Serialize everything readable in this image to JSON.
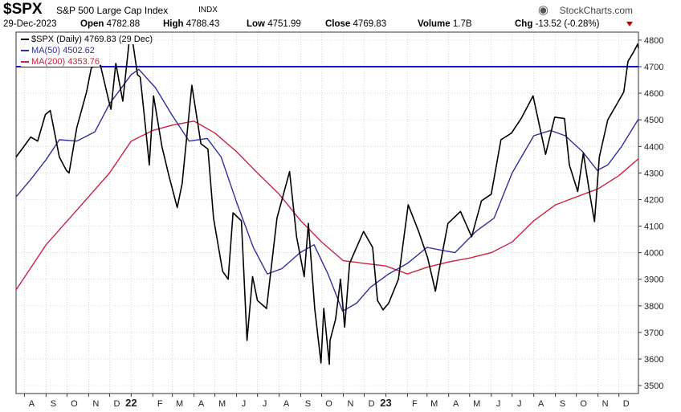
{
  "header": {
    "symbol": "$SPX",
    "name": "S&P 500 Large Cap Index",
    "exchange": "INDX",
    "brand": "StockCharts.com",
    "date": "29-Dec-2023",
    "open_label": "Open",
    "open": "4782.88",
    "high_label": "High",
    "high": "4788.43",
    "low_label": "Low",
    "low": "4751.99",
    "close_label": "Close",
    "close": "4769.83",
    "volume_label": "Volume",
    "volume": "1.7B",
    "chg_label": "Chg",
    "chg": "-13.52 (-0.28%)"
  },
  "legend": {
    "main": "$SPX (Daily) 4769.83 (29 Dec)",
    "ma50": "MA(50) 4502.62",
    "ma200": "MA(200) 4353.76"
  },
  "colors": {
    "price": "#000000",
    "ma50": "#2f2f9e",
    "ma200": "#cc2040",
    "hline": "#1010cc",
    "grid": "#c8c8c8",
    "axis": "#333333",
    "down_arrow": "#cc0000"
  },
  "chart_data": {
    "type": "line",
    "title": "$SPX (Daily) 4769.83 (29 Dec)",
    "x_tick_labels": [
      "A",
      "S",
      "O",
      "N",
      "D",
      "22",
      "F",
      "M",
      "A",
      "M",
      "J",
      "J",
      "A",
      "S",
      "O",
      "N",
      "D",
      "23",
      "F",
      "M",
      "A",
      "M",
      "J",
      "J",
      "A",
      "S",
      "O",
      "N",
      "D"
    ],
    "y_ticks": [
      3500,
      3600,
      3700,
      3800,
      3900,
      4000,
      4100,
      4200,
      4300,
      4400,
      4500,
      4600,
      4700,
      4800
    ],
    "ylim": [
      3470,
      4830
    ],
    "grid": true,
    "horizontal_line": 4700,
    "x_range": [
      "2021-07-20",
      "2023-12-29"
    ],
    "series": [
      {
        "name": "$SPX",
        "points": [
          [
            "2021-07-20",
            4360
          ],
          [
            "2021-07-30",
            4395
          ],
          [
            "2021-08-10",
            4435
          ],
          [
            "2021-08-20",
            4420
          ],
          [
            "2021-08-31",
            4520
          ],
          [
            "2021-09-07",
            4535
          ],
          [
            "2021-09-20",
            4360
          ],
          [
            "2021-09-30",
            4310
          ],
          [
            "2021-10-04",
            4300
          ],
          [
            "2021-10-15",
            4470
          ],
          [
            "2021-10-29",
            4605
          ],
          [
            "2021-11-05",
            4697
          ],
          [
            "2021-11-18",
            4705
          ],
          [
            "2021-11-30",
            4570
          ],
          [
            "2021-12-03",
            4540
          ],
          [
            "2021-12-10",
            4712
          ],
          [
            "2021-12-20",
            4570
          ],
          [
            "2021-12-29",
            4793
          ],
          [
            "2022-01-03",
            4797
          ],
          [
            "2022-01-10",
            4670
          ],
          [
            "2022-01-14",
            4660
          ],
          [
            "2022-01-24",
            4410
          ],
          [
            "2022-01-27",
            4330
          ],
          [
            "2022-02-02",
            4590
          ],
          [
            "2022-02-14",
            4400
          ],
          [
            "2022-02-24",
            4290
          ],
          [
            "2022-03-08",
            4170
          ],
          [
            "2022-03-15",
            4260
          ],
          [
            "2022-03-29",
            4630
          ],
          [
            "2022-04-11",
            4410
          ],
          [
            "2022-04-21",
            4390
          ],
          [
            "2022-04-29",
            4130
          ],
          [
            "2022-05-12",
            3930
          ],
          [
            "2022-05-20",
            3900
          ],
          [
            "2022-05-27",
            4150
          ],
          [
            "2022-06-08",
            4120
          ],
          [
            "2022-06-16",
            3670
          ],
          [
            "2022-06-24",
            3910
          ],
          [
            "2022-07-01",
            3820
          ],
          [
            "2022-07-14",
            3790
          ],
          [
            "2022-07-29",
            4130
          ],
          [
            "2022-08-16",
            4305
          ],
          [
            "2022-08-26",
            4060
          ],
          [
            "2022-09-06",
            3910
          ],
          [
            "2022-09-12",
            4110
          ],
          [
            "2022-09-21",
            3790
          ],
          [
            "2022-09-30",
            3585
          ],
          [
            "2022-10-04",
            3790
          ],
          [
            "2022-10-12",
            3580
          ],
          [
            "2022-10-13",
            3670
          ],
          [
            "2022-10-21",
            3750
          ],
          [
            "2022-10-28",
            3900
          ],
          [
            "2022-11-03",
            3720
          ],
          [
            "2022-11-10",
            3960
          ],
          [
            "2022-11-30",
            4080
          ],
          [
            "2022-12-13",
            4020
          ],
          [
            "2022-12-20",
            3820
          ],
          [
            "2022-12-28",
            3785
          ],
          [
            "2023-01-05",
            3810
          ],
          [
            "2023-01-19",
            3900
          ],
          [
            "2023-02-02",
            4180
          ],
          [
            "2023-02-17",
            4080
          ],
          [
            "2023-03-02",
            3980
          ],
          [
            "2023-03-13",
            3855
          ],
          [
            "2023-03-17",
            3915
          ],
          [
            "2023-03-31",
            4110
          ],
          [
            "2023-04-18",
            4155
          ],
          [
            "2023-05-04",
            4060
          ],
          [
            "2023-05-18",
            4195
          ],
          [
            "2023-06-01",
            4220
          ],
          [
            "2023-06-15",
            4425
          ],
          [
            "2023-06-30",
            4450
          ],
          [
            "2023-07-14",
            4505
          ],
          [
            "2023-07-31",
            4590
          ],
          [
            "2023-08-18",
            4370
          ],
          [
            "2023-08-31",
            4510
          ],
          [
            "2023-09-14",
            4505
          ],
          [
            "2023-09-21",
            4330
          ],
          [
            "2023-10-03",
            4230
          ],
          [
            "2023-10-11",
            4375
          ],
          [
            "2023-10-20",
            4225
          ],
          [
            "2023-10-27",
            4117
          ],
          [
            "2023-11-03",
            4360
          ],
          [
            "2023-11-15",
            4500
          ],
          [
            "2023-11-30",
            4568
          ],
          [
            "2023-12-08",
            4605
          ],
          [
            "2023-12-14",
            4720
          ],
          [
            "2023-12-22",
            4755
          ],
          [
            "2023-12-28",
            4785
          ],
          [
            "2023-12-29",
            4769.83
          ]
        ]
      },
      {
        "name": "MA(50)",
        "points": [
          [
            "2021-07-20",
            4210
          ],
          [
            "2021-08-10",
            4275
          ],
          [
            "2021-09-01",
            4350
          ],
          [
            "2021-09-20",
            4425
          ],
          [
            "2021-10-15",
            4420
          ],
          [
            "2021-11-10",
            4455
          ],
          [
            "2021-12-01",
            4560
          ],
          [
            "2022-01-01",
            4670
          ],
          [
            "2022-01-12",
            4690
          ],
          [
            "2022-02-05",
            4620
          ],
          [
            "2022-02-28",
            4520
          ],
          [
            "2022-03-25",
            4420
          ],
          [
            "2022-04-20",
            4430
          ],
          [
            "2022-05-10",
            4360
          ],
          [
            "2022-06-01",
            4190
          ],
          [
            "2022-06-25",
            4020
          ],
          [
            "2022-07-15",
            3920
          ],
          [
            "2022-08-05",
            3940
          ],
          [
            "2022-08-31",
            4000
          ],
          [
            "2022-09-20",
            4030
          ],
          [
            "2022-10-10",
            3920
          ],
          [
            "2022-10-31",
            3780
          ],
          [
            "2022-11-20",
            3810
          ],
          [
            "2022-12-10",
            3870
          ],
          [
            "2023-01-05",
            3920
          ],
          [
            "2023-02-01",
            3960
          ],
          [
            "2023-03-01",
            4020
          ],
          [
            "2023-03-20",
            4010
          ],
          [
            "2023-04-10",
            4000
          ],
          [
            "2023-05-10",
            4080
          ],
          [
            "2023-06-05",
            4130
          ],
          [
            "2023-07-01",
            4300
          ],
          [
            "2023-08-01",
            4440
          ],
          [
            "2023-08-25",
            4460
          ],
          [
            "2023-09-15",
            4440
          ],
          [
            "2023-10-10",
            4380
          ],
          [
            "2023-10-31",
            4310
          ],
          [
            "2023-11-15",
            4330
          ],
          [
            "2023-12-05",
            4400
          ],
          [
            "2023-12-29",
            4502.62
          ]
        ]
      },
      {
        "name": "MA(200)",
        "points": [
          [
            "2021-07-20",
            3860
          ],
          [
            "2021-09-01",
            4030
          ],
          [
            "2021-10-15",
            4160
          ],
          [
            "2021-12-01",
            4300
          ],
          [
            "2022-01-01",
            4420
          ],
          [
            "2022-02-01",
            4460
          ],
          [
            "2022-03-01",
            4480
          ],
          [
            "2022-04-01",
            4495
          ],
          [
            "2022-05-01",
            4450
          ],
          [
            "2022-06-01",
            4380
          ],
          [
            "2022-07-01",
            4300
          ],
          [
            "2022-08-01",
            4220
          ],
          [
            "2022-09-01",
            4120
          ],
          [
            "2022-10-01",
            4040
          ],
          [
            "2022-11-01",
            3970
          ],
          [
            "2022-12-01",
            3960
          ],
          [
            "2023-01-01",
            3950
          ],
          [
            "2023-02-01",
            3920
          ],
          [
            "2023-03-01",
            3945
          ],
          [
            "2023-04-01",
            3965
          ],
          [
            "2023-05-01",
            3980
          ],
          [
            "2023-06-01",
            4000
          ],
          [
            "2023-07-01",
            4040
          ],
          [
            "2023-08-01",
            4120
          ],
          [
            "2023-09-01",
            4180
          ],
          [
            "2023-10-01",
            4210
          ],
          [
            "2023-11-01",
            4240
          ],
          [
            "2023-12-01",
            4290
          ],
          [
            "2023-12-29",
            4353.76
          ]
        ]
      }
    ]
  }
}
